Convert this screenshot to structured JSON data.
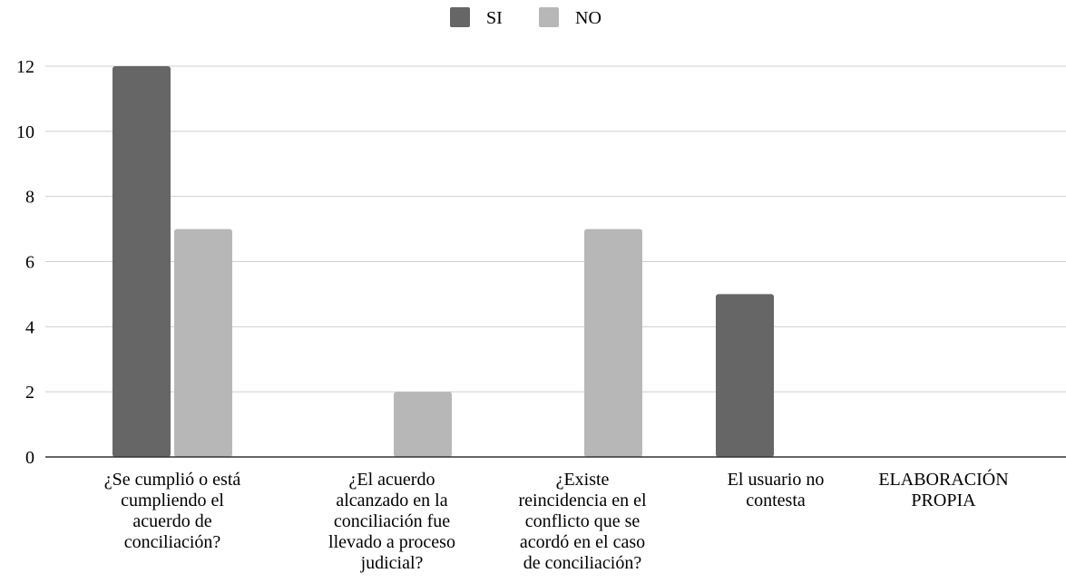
{
  "chart_data": {
    "type": "bar",
    "categories": [
      "¿Se cumplió o está cumpliendo el acuerdo de conciliación?",
      "¿El acuerdo alcanzado en la conciliación fue llevado a proceso judicial?",
      "¿Existe reincidencia en el conflicto que se acordó en el caso de conciliación?",
      "El usuario no contesta",
      "ELABORACIÓN PROPIA"
    ],
    "category_lines": [
      [
        "¿Se cumplió o está",
        "cumpliendo el",
        "acuerdo de",
        "conciliación?"
      ],
      [
        "¿El acuerdo",
        "alcanzado en la",
        "conciliación fue",
        "llevado a proceso",
        "judicial?"
      ],
      [
        "¿Existe",
        "reincidencia en el",
        "conflicto que se",
        "acordó en el caso",
        "de conciliación?"
      ],
      [
        "El usuario no",
        "contesta"
      ],
      [
        "ELABORACIÓN",
        "PROPIA"
      ]
    ],
    "series": [
      {
        "name": "SI",
        "color": "#666666",
        "values": [
          12,
          0,
          0,
          5,
          0
        ]
      },
      {
        "name": "NO",
        "color": "#b7b7b7",
        "values": [
          7,
          2,
          7,
          0,
          0
        ]
      }
    ],
    "yticks": [
      "0",
      "2",
      "4",
      "6",
      "8",
      "10",
      "12"
    ],
    "ylim": [
      0,
      12
    ],
    "grid": true,
    "legend": "top-center",
    "title": "",
    "xlabel": "",
    "ylabel": ""
  }
}
